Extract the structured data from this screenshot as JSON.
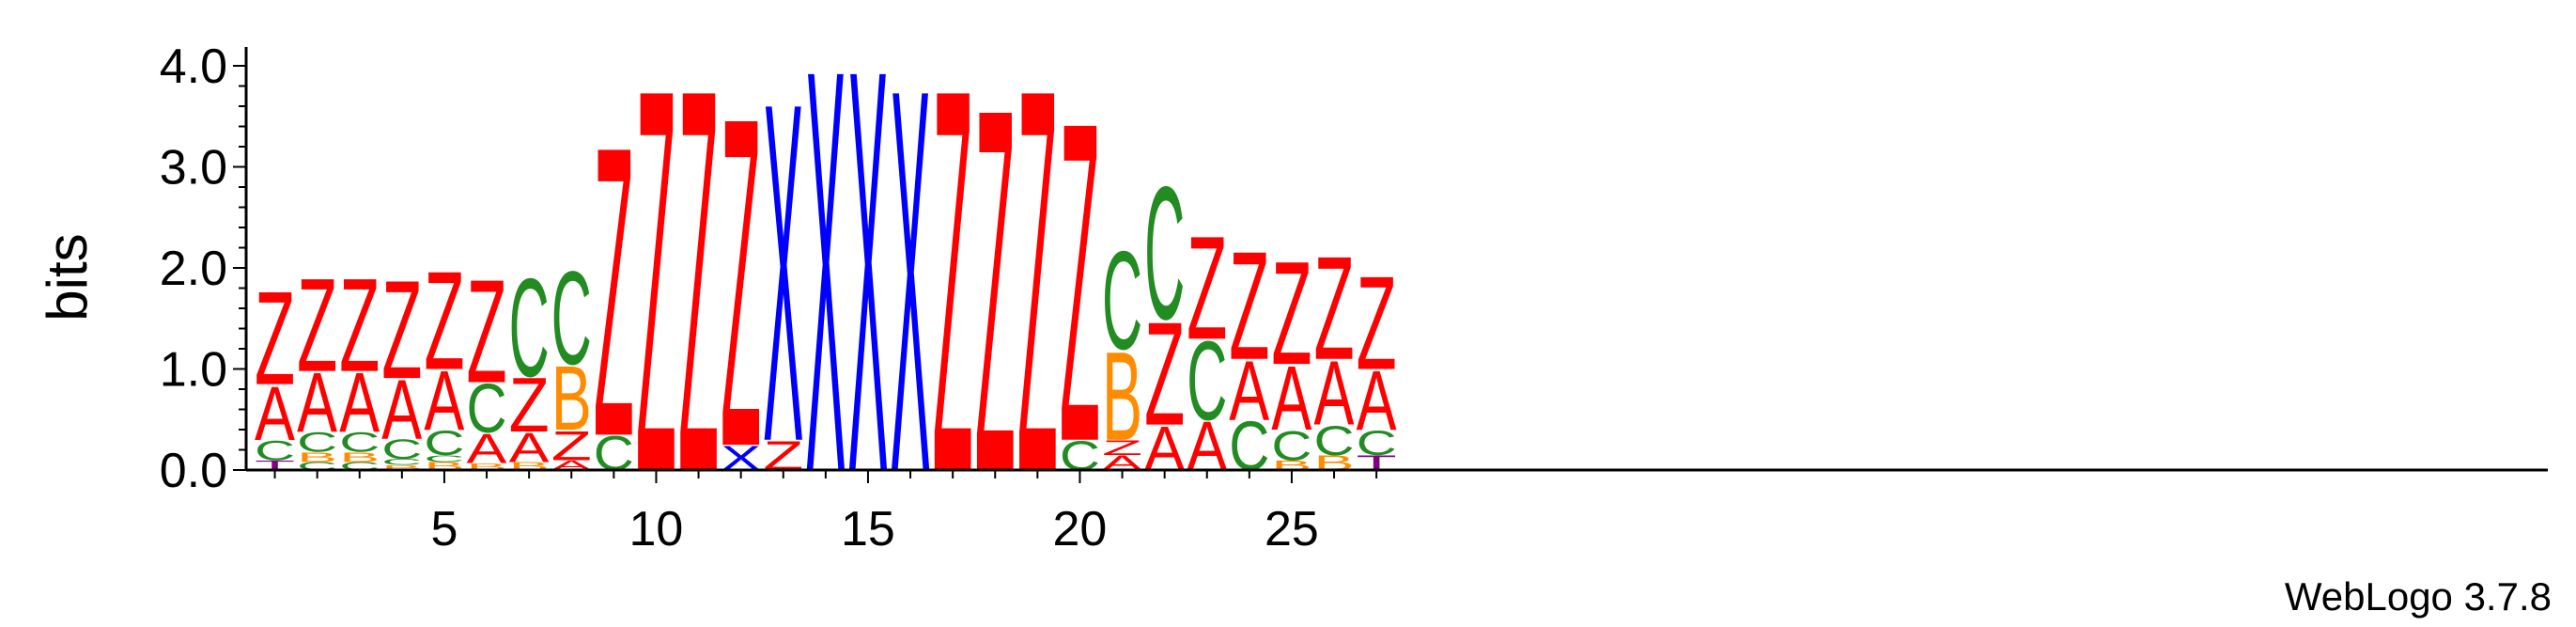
{
  "chart_data": {
    "type": "sequence-logo",
    "ylabel": "bits",
    "ylim": [
      0,
      4.0
    ],
    "y_ticks": [
      "0.0",
      "1.0",
      "2.0",
      "3.0",
      "4.0"
    ],
    "x_ticks": [
      5,
      10,
      15,
      20,
      25
    ],
    "positions": [
      {
        "pos": 1,
        "stack": [
          [
            "T",
            0.1
          ],
          [
            "C",
            0.2
          ],
          [
            "A",
            0.55
          ],
          [
            "Z",
            0.95
          ]
        ]
      },
      {
        "pos": 2,
        "stack": [
          [
            "C",
            0.08
          ],
          [
            "B",
            0.1
          ],
          [
            "C",
            0.2
          ],
          [
            "A",
            0.6
          ],
          [
            "Z",
            0.95
          ]
        ]
      },
      {
        "pos": 3,
        "stack": [
          [
            "C",
            0.08
          ],
          [
            "B",
            0.1
          ],
          [
            "C",
            0.2
          ],
          [
            "A",
            0.6
          ],
          [
            "Z",
            0.95
          ]
        ]
      },
      {
        "pos": 4,
        "stack": [
          [
            "B",
            0.05
          ],
          [
            "C",
            0.06
          ],
          [
            "C",
            0.2
          ],
          [
            "A",
            0.6
          ],
          [
            "Z",
            1.0
          ]
        ]
      },
      {
        "pos": 5,
        "stack": [
          [
            "B",
            0.08
          ],
          [
            "C",
            0.07
          ],
          [
            "C",
            0.25
          ],
          [
            "A",
            0.6
          ],
          [
            "Z",
            1.0
          ]
        ]
      },
      {
        "pos": 6,
        "stack": [
          [
            "B",
            0.07
          ],
          [
            "A",
            0.3
          ],
          [
            "C",
            0.5
          ],
          [
            "Z",
            1.05
          ]
        ]
      },
      {
        "pos": 7,
        "stack": [
          [
            "B",
            0.08
          ],
          [
            "A",
            0.3
          ],
          [
            "Z",
            0.55
          ],
          [
            "C",
            1.0
          ]
        ]
      },
      {
        "pos": 8,
        "stack": [
          [
            "A",
            0.1
          ],
          [
            "Z",
            0.3
          ],
          [
            "B",
            0.65
          ],
          [
            "C",
            0.95
          ]
        ]
      },
      {
        "pos": 9,
        "stack": [
          [
            "C",
            0.35
          ],
          [
            "Z",
            2.95
          ]
        ]
      },
      {
        "pos": 10,
        "stack": [
          [
            "Z",
            3.9
          ]
        ]
      },
      {
        "pos": 11,
        "stack": [
          [
            "Z",
            3.9
          ]
        ]
      },
      {
        "pos": 12,
        "stack": [
          [
            "X",
            0.25
          ],
          [
            "Z",
            3.35
          ]
        ]
      },
      {
        "pos": 13,
        "stack": [
          [
            "Z",
            0.3
          ],
          [
            "X",
            3.45
          ]
        ]
      },
      {
        "pos": 14,
        "stack": [
          [
            "X",
            4.1
          ]
        ]
      },
      {
        "pos": 15,
        "stack": [
          [
            "X",
            4.1
          ]
        ]
      },
      {
        "pos": 16,
        "stack": [
          [
            "X",
            3.9
          ]
        ]
      },
      {
        "pos": 17,
        "stack": [
          [
            "Z",
            3.9
          ]
        ]
      },
      {
        "pos": 18,
        "stack": [
          [
            "Z",
            3.7
          ]
        ]
      },
      {
        "pos": 19,
        "stack": [
          [
            "Z",
            3.9
          ]
        ]
      },
      {
        "pos": 20,
        "stack": [
          [
            "C",
            0.3
          ],
          [
            "Z",
            3.25
          ]
        ]
      },
      {
        "pos": 21,
        "stack": [
          [
            "A",
            0.15
          ],
          [
            "Z",
            0.15
          ],
          [
            "B",
            0.9
          ],
          [
            "C",
            1.0
          ]
        ]
      },
      {
        "pos": 22,
        "stack": [
          [
            "A",
            0.45
          ],
          [
            "Z",
            1.05
          ],
          [
            "C",
            1.35
          ]
        ]
      },
      {
        "pos": 23,
        "stack": [
          [
            "A",
            0.5
          ],
          [
            "C",
            0.8
          ],
          [
            "Z",
            1.05
          ]
        ]
      },
      {
        "pos": 24,
        "stack": [
          [
            "C",
            0.5
          ],
          [
            "A",
            0.6
          ],
          [
            "Z",
            1.1
          ]
        ]
      },
      {
        "pos": 25,
        "stack": [
          [
            "B",
            0.1
          ],
          [
            "C",
            0.3
          ],
          [
            "A",
            0.65
          ],
          [
            "Z",
            1.05
          ]
        ]
      },
      {
        "pos": 26,
        "stack": [
          [
            "B",
            0.15
          ],
          [
            "C",
            0.3
          ],
          [
            "A",
            0.65
          ],
          [
            "Z",
            1.05
          ]
        ]
      },
      {
        "pos": 27,
        "stack": [
          [
            "T",
            0.15
          ],
          [
            "C",
            0.25
          ],
          [
            "A",
            0.6
          ],
          [
            "Z",
            0.95
          ]
        ]
      }
    ],
    "letter_colors": {
      "Z": "#ff0000",
      "A": "#ff0000",
      "X": "#0000ff",
      "C": "#228b22",
      "B": "#ff8c00",
      "T": "#800080"
    }
  },
  "credit": "WebLogo 3.7.8"
}
